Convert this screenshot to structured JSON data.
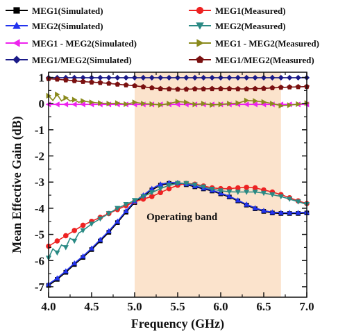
{
  "chart_data": {
    "type": "line",
    "xlabel": "Frequency (GHz)",
    "ylabel": "Mean Effective Gain (dB)",
    "xlim": [
      4.0,
      7.0
    ],
    "ylim": [
      -7.4,
      1.2
    ],
    "x_ticks": [
      "4.0",
      "4.5",
      "5.0",
      "5.5",
      "6.0",
      "6.5",
      "7.0"
    ],
    "y_ticks": [
      "1",
      "0",
      "-1",
      "-2",
      "-3",
      "-4",
      "-5",
      "-6",
      "-7"
    ],
    "y_tick_values": [
      1,
      0,
      -1,
      -2,
      -3,
      -4,
      -5,
      -6,
      -7
    ],
    "legend_position": "top",
    "operating_band": {
      "from": 5.0,
      "to": 6.7,
      "label": "Operating band",
      "label_x": 5.55,
      "label_y": -4.45,
      "color": "#fbe3cc"
    },
    "series": [
      {
        "name": "MEG1(Simulated)",
        "color": "#000000",
        "marker": "square",
        "x": [
          4.0,
          4.1,
          4.2,
          4.3,
          4.4,
          4.5,
          4.6,
          4.7,
          4.8,
          4.9,
          5.0,
          5.1,
          5.2,
          5.3,
          5.4,
          5.5,
          5.6,
          5.7,
          5.8,
          5.9,
          6.0,
          6.1,
          6.2,
          6.3,
          6.4,
          6.5,
          6.6,
          6.7,
          6.8,
          6.9,
          7.0
        ],
        "y": [
          -6.95,
          -6.72,
          -6.45,
          -6.15,
          -5.88,
          -5.58,
          -5.25,
          -4.92,
          -4.55,
          -4.15,
          -3.78,
          -3.55,
          -3.3,
          -3.12,
          -3.05,
          -3.05,
          -3.1,
          -3.18,
          -3.26,
          -3.34,
          -3.45,
          -3.57,
          -3.72,
          -3.88,
          -4.02,
          -4.12,
          -4.18,
          -4.2,
          -4.2,
          -4.2,
          -4.18
        ]
      },
      {
        "name": "MEG1(Measured)",
        "color": "#ee2222",
        "marker": "circle",
        "x": [
          4.0,
          4.1,
          4.2,
          4.3,
          4.4,
          4.5,
          4.6,
          4.7,
          4.8,
          4.9,
          5.0,
          5.1,
          5.2,
          5.3,
          5.4,
          5.5,
          5.6,
          5.7,
          5.8,
          5.9,
          6.0,
          6.1,
          6.2,
          6.3,
          6.4,
          6.5,
          6.6,
          6.7,
          6.8,
          6.9,
          7.0
        ],
        "y": [
          -5.45,
          -5.25,
          -5.05,
          -4.85,
          -4.65,
          -4.5,
          -4.35,
          -4.2,
          -4.05,
          -3.9,
          -3.75,
          -3.65,
          -3.55,
          -3.4,
          -3.25,
          -3.12,
          -3.05,
          -3.08,
          -3.15,
          -3.22,
          -3.25,
          -3.25,
          -3.22,
          -3.2,
          -3.22,
          -3.3,
          -3.38,
          -3.48,
          -3.6,
          -3.72,
          -3.82
        ]
      },
      {
        "name": "MEG2(Simulated)",
        "color": "#2233ee",
        "marker": "triangle-up",
        "x": [
          4.0,
          4.1,
          4.2,
          4.3,
          4.4,
          4.5,
          4.6,
          4.7,
          4.8,
          4.9,
          5.0,
          5.1,
          5.2,
          5.3,
          5.4,
          5.5,
          5.6,
          5.7,
          5.8,
          5.9,
          6.0,
          6.1,
          6.2,
          6.3,
          6.4,
          6.5,
          6.6,
          6.7,
          6.8,
          6.9,
          7.0
        ],
        "y": [
          -6.9,
          -6.67,
          -6.4,
          -6.1,
          -5.83,
          -5.53,
          -5.2,
          -4.87,
          -4.5,
          -4.1,
          -3.73,
          -3.5,
          -3.25,
          -3.08,
          -3.02,
          -3.02,
          -3.07,
          -3.15,
          -3.23,
          -3.31,
          -3.42,
          -3.54,
          -3.69,
          -3.85,
          -3.99,
          -4.09,
          -4.15,
          -4.17,
          -4.17,
          -4.17,
          -4.15
        ]
      },
      {
        "name": "MEG2(Measured)",
        "color": "#2a8a84",
        "marker": "triangle-down",
        "x": [
          4.0,
          4.05,
          4.1,
          4.15,
          4.2,
          4.25,
          4.3,
          4.35,
          4.4,
          4.5,
          4.6,
          4.7,
          4.8,
          4.9,
          5.0,
          5.1,
          5.2,
          5.3,
          5.4,
          5.5,
          5.6,
          5.7,
          5.8,
          5.9,
          6.0,
          6.1,
          6.2,
          6.3,
          6.4,
          6.5,
          6.6,
          6.7,
          6.8,
          6.9,
          7.0
        ],
        "y": [
          -5.9,
          -5.55,
          -5.7,
          -5.4,
          -5.5,
          -5.15,
          -5.25,
          -4.95,
          -4.85,
          -4.6,
          -4.4,
          -4.2,
          -4.0,
          -3.85,
          -3.7,
          -3.55,
          -3.4,
          -3.25,
          -3.12,
          -3.05,
          -3.05,
          -3.1,
          -3.18,
          -3.27,
          -3.33,
          -3.37,
          -3.38,
          -3.38,
          -3.38,
          -3.42,
          -3.48,
          -3.55,
          -3.65,
          -3.75,
          -3.85
        ]
      },
      {
        "name": "MEG1 - MEG2(Simulated)",
        "color": "#ee22ee",
        "marker": "triangle-left",
        "x": [
          4.0,
          4.1,
          4.2,
          4.3,
          4.4,
          4.5,
          4.6,
          4.7,
          4.8,
          4.9,
          5.0,
          5.1,
          5.2,
          5.3,
          5.4,
          5.5,
          5.6,
          5.7,
          5.8,
          5.9,
          6.0,
          6.1,
          6.2,
          6.3,
          6.4,
          6.5,
          6.6,
          6.7,
          6.8,
          6.9,
          7.0
        ],
        "y": [
          -0.03,
          -0.03,
          -0.03,
          -0.03,
          -0.03,
          -0.03,
          -0.03,
          -0.03,
          -0.03,
          -0.03,
          -0.03,
          -0.03,
          -0.03,
          -0.03,
          -0.03,
          -0.03,
          -0.03,
          -0.03,
          -0.03,
          -0.03,
          -0.03,
          -0.03,
          -0.03,
          -0.03,
          -0.03,
          -0.03,
          -0.03,
          -0.03,
          -0.03,
          -0.03,
          -0.03
        ]
      },
      {
        "name": "MEG1 - MEG2(Measured)",
        "color": "#8a8a1c",
        "marker": "triangle-right",
        "x": [
          4.0,
          4.05,
          4.1,
          4.15,
          4.2,
          4.25,
          4.3,
          4.35,
          4.4,
          4.5,
          4.6,
          4.7,
          4.8,
          4.9,
          5.0,
          5.1,
          5.2,
          5.3,
          5.4,
          5.5,
          5.6,
          5.7,
          5.8,
          5.9,
          6.0,
          6.1,
          6.2,
          6.3,
          6.4,
          6.5,
          6.6,
          6.7,
          6.8,
          6.9,
          7.0
        ],
        "y": [
          0.3,
          0.12,
          0.35,
          0.1,
          0.22,
          0.1,
          0.15,
          0.05,
          0.1,
          0.05,
          0.02,
          0.0,
          0.02,
          -0.02,
          0.05,
          0.0,
          -0.02,
          -0.05,
          0.0,
          0.08,
          0.05,
          -0.03,
          0.0,
          -0.05,
          -0.03,
          0.0,
          0.02,
          0.12,
          0.1,
          0.06,
          0.0,
          -0.08,
          -0.06,
          -0.02,
          0.02
        ]
      },
      {
        "name": "MEG1/MEG2(Simulated)",
        "color": "#1a1a88",
        "marker": "diamond",
        "x": [
          4.0,
          4.1,
          4.2,
          4.3,
          4.4,
          4.5,
          4.6,
          4.7,
          4.8,
          4.9,
          5.0,
          5.1,
          5.2,
          5.3,
          5.4,
          5.5,
          5.6,
          5.7,
          5.8,
          5.9,
          6.0,
          6.1,
          6.2,
          6.3,
          6.4,
          6.5,
          6.6,
          6.7,
          6.8,
          6.9,
          7.0
        ],
        "y": [
          0.99,
          0.99,
          0.99,
          0.99,
          0.99,
          0.99,
          0.99,
          0.99,
          0.99,
          0.99,
          0.99,
          0.99,
          0.99,
          0.99,
          0.99,
          0.99,
          0.99,
          0.99,
          0.99,
          0.99,
          0.99,
          0.99,
          0.99,
          0.99,
          0.99,
          0.99,
          0.99,
          0.99,
          0.99,
          0.99,
          0.99
        ]
      },
      {
        "name": "MEG1/MEG2(Measured)",
        "color": "#7a1010",
        "marker": "pentagon",
        "x": [
          4.0,
          4.1,
          4.2,
          4.3,
          4.4,
          4.5,
          4.6,
          4.7,
          4.8,
          4.9,
          5.0,
          5.1,
          5.2,
          5.3,
          5.4,
          5.5,
          5.6,
          5.7,
          5.8,
          5.9,
          6.0,
          6.1,
          6.2,
          6.3,
          6.4,
          6.5,
          6.6,
          6.7,
          6.8,
          6.9,
          7.0
        ],
        "y": [
          0.95,
          0.93,
          0.9,
          0.87,
          0.84,
          0.82,
          0.8,
          0.77,
          0.74,
          0.71,
          0.68,
          0.64,
          0.6,
          0.57,
          0.56,
          0.55,
          0.55,
          0.56,
          0.56,
          0.57,
          0.57,
          0.57,
          0.56,
          0.56,
          0.57,
          0.58,
          0.6,
          0.62,
          0.63,
          0.64,
          0.65
        ]
      }
    ]
  }
}
